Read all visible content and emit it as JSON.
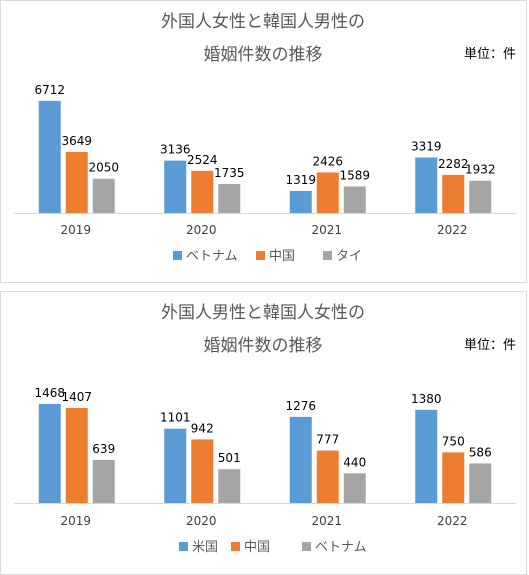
{
  "chart_data": [
    {
      "type": "bar",
      "title_lines": [
        "外国人女性と韓国人男性の",
        "婚姻件数の推移"
      ],
      "unit_label": "単位：件",
      "categories": [
        "2019",
        "2020",
        "2021",
        "2022"
      ],
      "series": [
        {
          "name": "ベトナム",
          "color": "#5b9bd5",
          "values": [
            6712,
            3136,
            1319,
            3319
          ]
        },
        {
          "name": "中国",
          "color": "#ed7d31",
          "values": [
            3649,
            2524,
            2426,
            2282
          ]
        },
        {
          "name": "タイ",
          "color": "#a5a5a5",
          "values": [
            2050,
            1735,
            1589,
            1932
          ]
        }
      ],
      "ylim": [
        0,
        7000
      ],
      "grid": false,
      "legend_position": "bottom"
    },
    {
      "type": "bar",
      "title_lines": [
        "外国人男性と韓国人女性の",
        "婚姻件数の推移"
      ],
      "unit_label": "単位：件",
      "categories": [
        "2019",
        "2020",
        "2021",
        "2022"
      ],
      "series": [
        {
          "name": "米国",
          "color": "#5b9bd5",
          "values": [
            1468,
            1101,
            1276,
            1380
          ]
        },
        {
          "name": "中国",
          "color": "#ed7d31",
          "values": [
            1407,
            942,
            777,
            750
          ]
        },
        {
          "name": "ベトナム",
          "color": "#a5a5a5",
          "values": [
            639,
            501,
            440,
            586
          ]
        }
      ],
      "ylim": [
        0,
        1600
      ],
      "grid": false,
      "legend_position": "bottom"
    }
  ]
}
